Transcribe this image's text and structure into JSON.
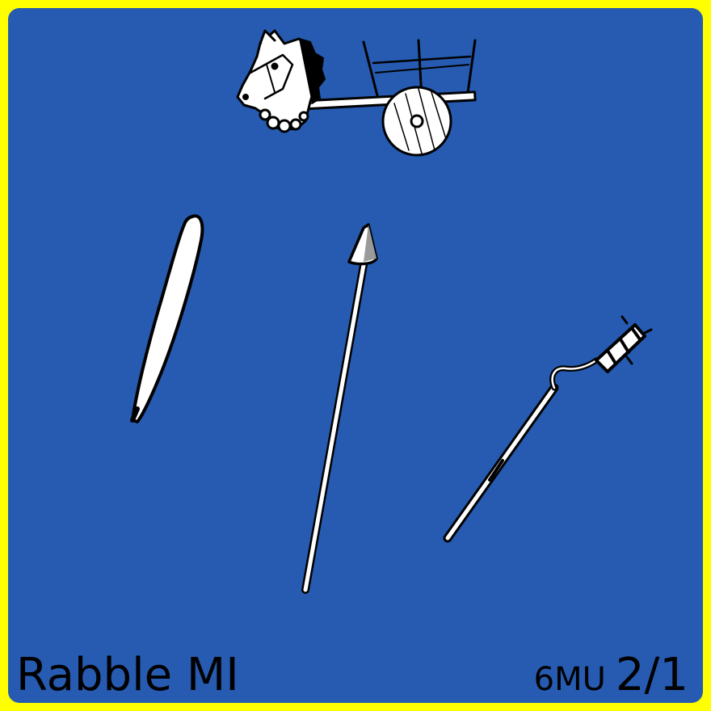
{
  "card": {
    "unit_name": "Rabble MI",
    "movement": "6MU",
    "combat_factors": "2/1",
    "colors": {
      "border": "#ffff00",
      "background": "#265bb1",
      "icon_fill": "#ffffff",
      "icon_outline": "#000000"
    },
    "icons": [
      "horse-cart-icon",
      "thrown-spear-icon",
      "spear-icon",
      "club-icon"
    ]
  }
}
